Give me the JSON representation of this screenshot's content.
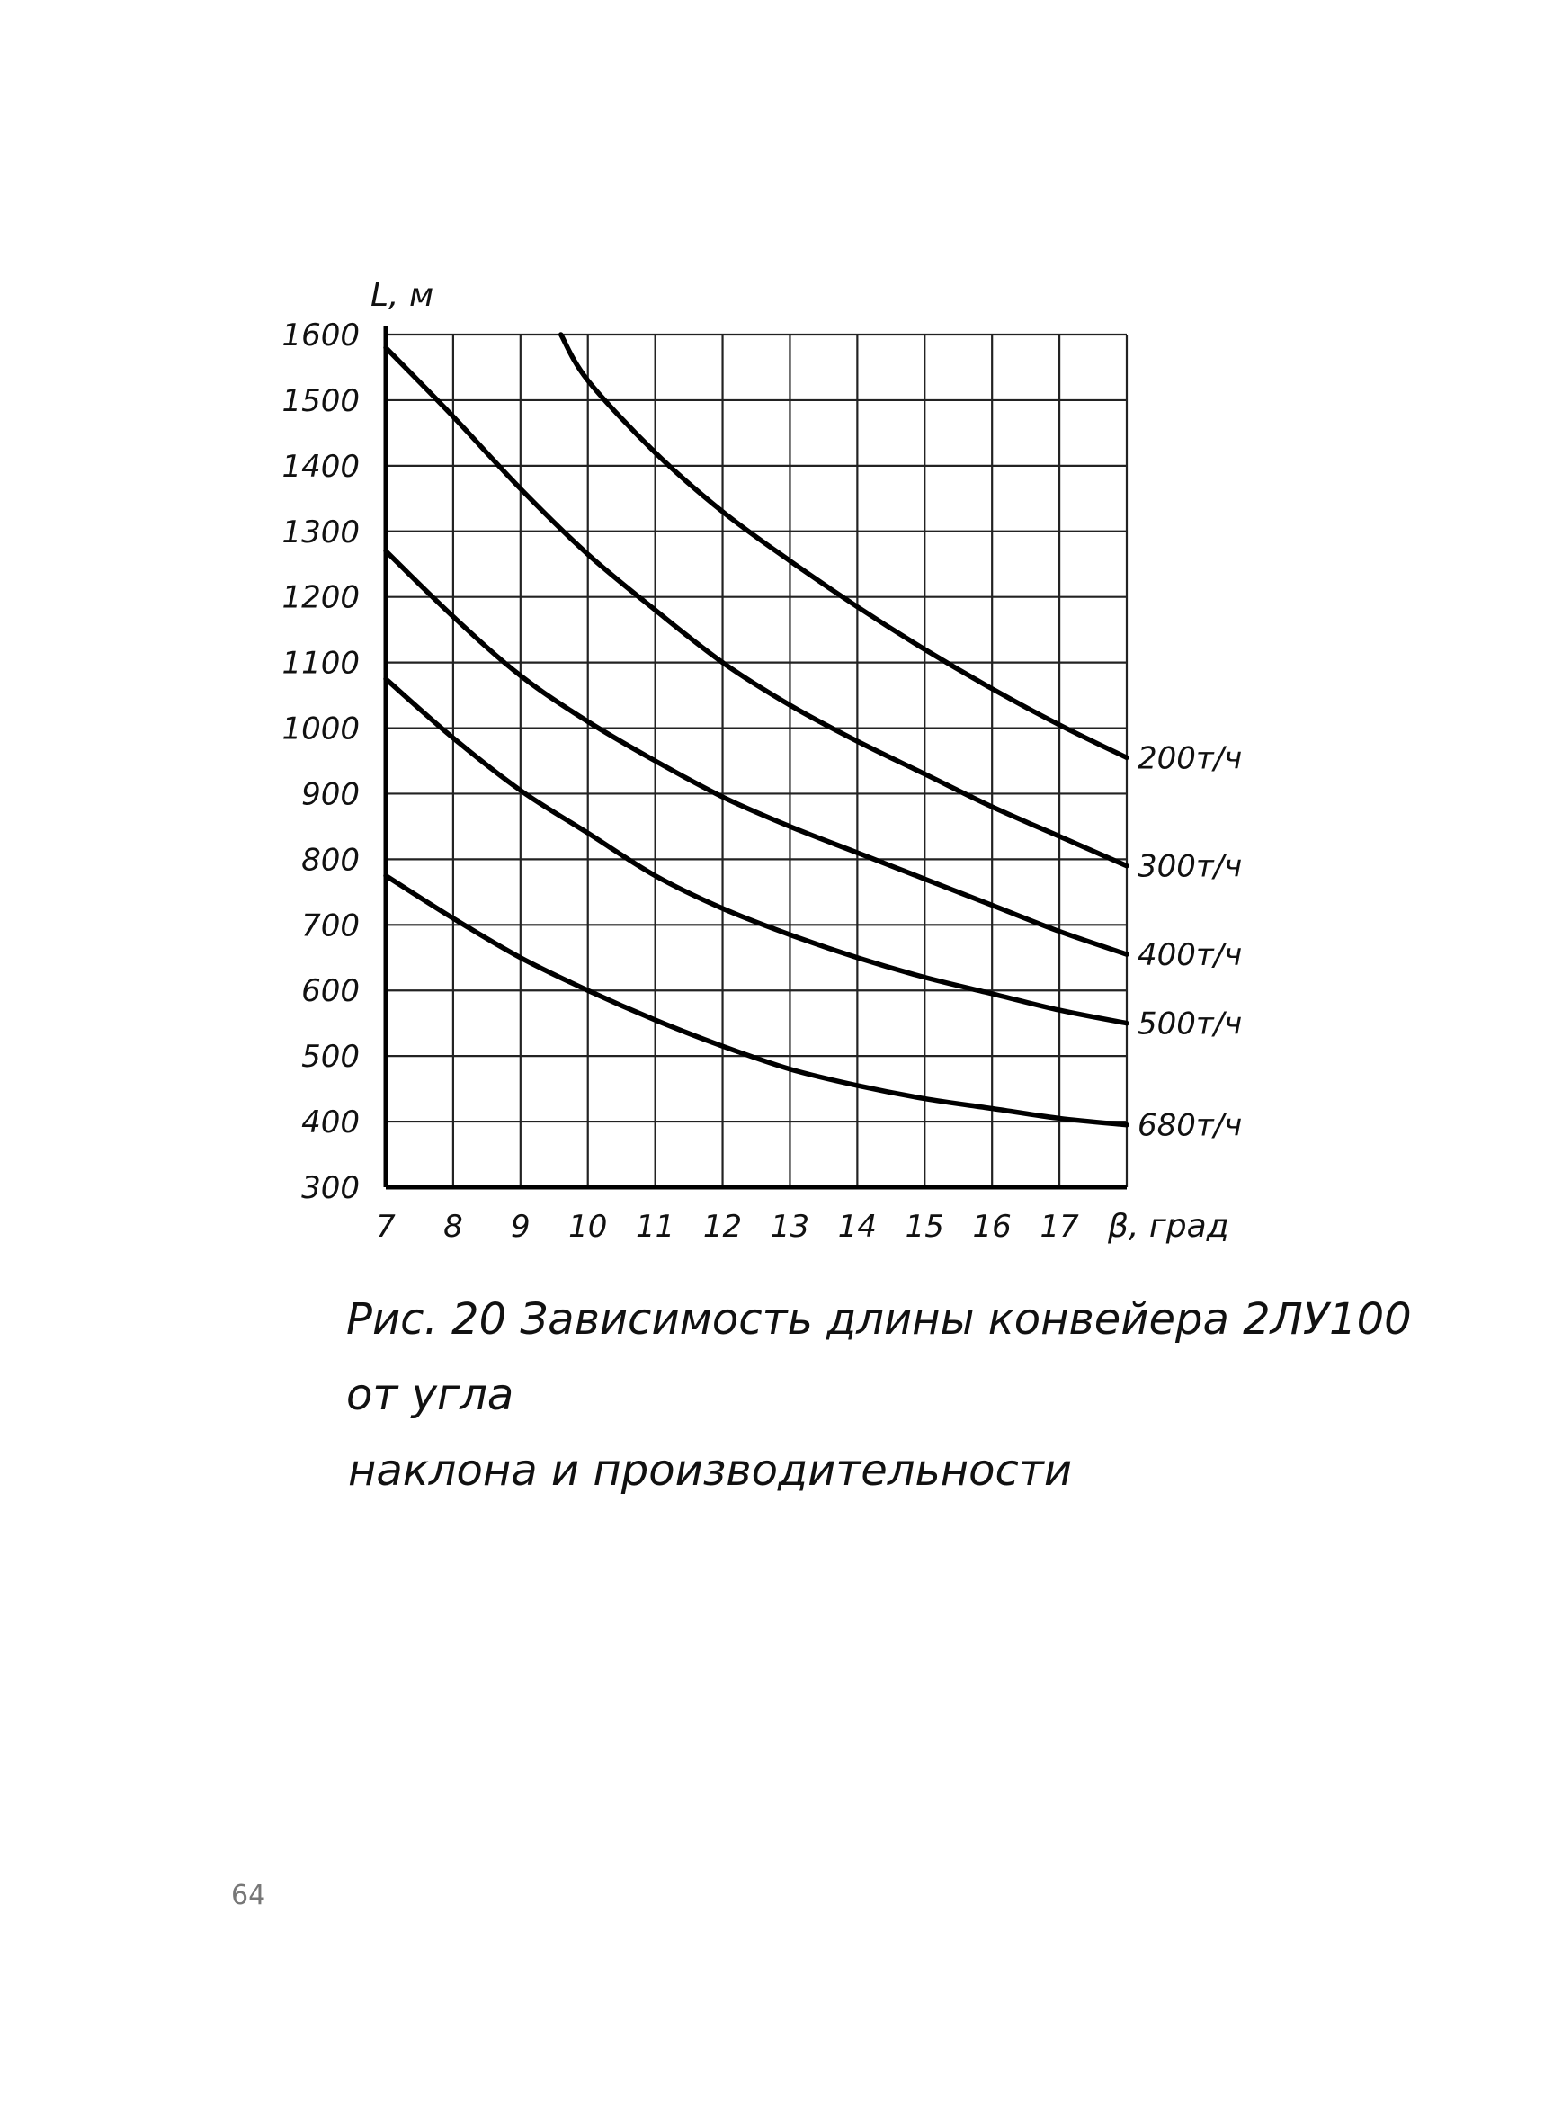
{
  "chart_data": {
    "type": "line",
    "ylabel": "L, м",
    "xlabel": "β, град",
    "xlim": [
      7,
      18
    ],
    "ylim": [
      300,
      1600
    ],
    "x_ticks": [
      7,
      8,
      9,
      10,
      11,
      12,
      13,
      14,
      15,
      16,
      17
    ],
    "y_ticks": [
      300,
      400,
      500,
      600,
      700,
      800,
      900,
      1000,
      1100,
      1200,
      1300,
      1400,
      1500,
      1600
    ],
    "grid": true,
    "series": [
      {
        "name": "200т/ч",
        "x": [
          9.6,
          10,
          11,
          12,
          13,
          14,
          15,
          16,
          17,
          18
        ],
        "y": [
          1600,
          1530,
          1420,
          1330,
          1255,
          1185,
          1120,
          1060,
          1005,
          955
        ]
      },
      {
        "name": "300т/ч",
        "x": [
          7,
          8,
          9,
          10,
          11,
          12,
          13,
          14,
          15,
          16,
          17,
          18
        ],
        "y": [
          1580,
          1475,
          1365,
          1265,
          1180,
          1100,
          1035,
          980,
          930,
          880,
          835,
          790
        ]
      },
      {
        "name": "400т/ч",
        "x": [
          7,
          8,
          9,
          10,
          11,
          12,
          13,
          14,
          15,
          16,
          17,
          18
        ],
        "y": [
          1270,
          1170,
          1080,
          1010,
          950,
          895,
          850,
          810,
          770,
          730,
          690,
          655
        ]
      },
      {
        "name": "500т/ч",
        "x": [
          7,
          8,
          9,
          10,
          11,
          12,
          13,
          14,
          15,
          16,
          17,
          18
        ],
        "y": [
          1075,
          985,
          905,
          840,
          775,
          725,
          685,
          650,
          620,
          595,
          570,
          550
        ]
      },
      {
        "name": "680т/ч",
        "x": [
          7,
          8,
          9,
          10,
          11,
          12,
          13,
          14,
          15,
          16,
          17,
          18
        ],
        "y": [
          775,
          710,
          650,
          600,
          555,
          515,
          480,
          455,
          435,
          420,
          405,
          395
        ]
      }
    ]
  },
  "caption": {
    "line1": "Рис. 20 Зависимость длины конвейера 2ЛУ100 от угла",
    "line2": "наклона и производительности"
  },
  "page_number": "64"
}
